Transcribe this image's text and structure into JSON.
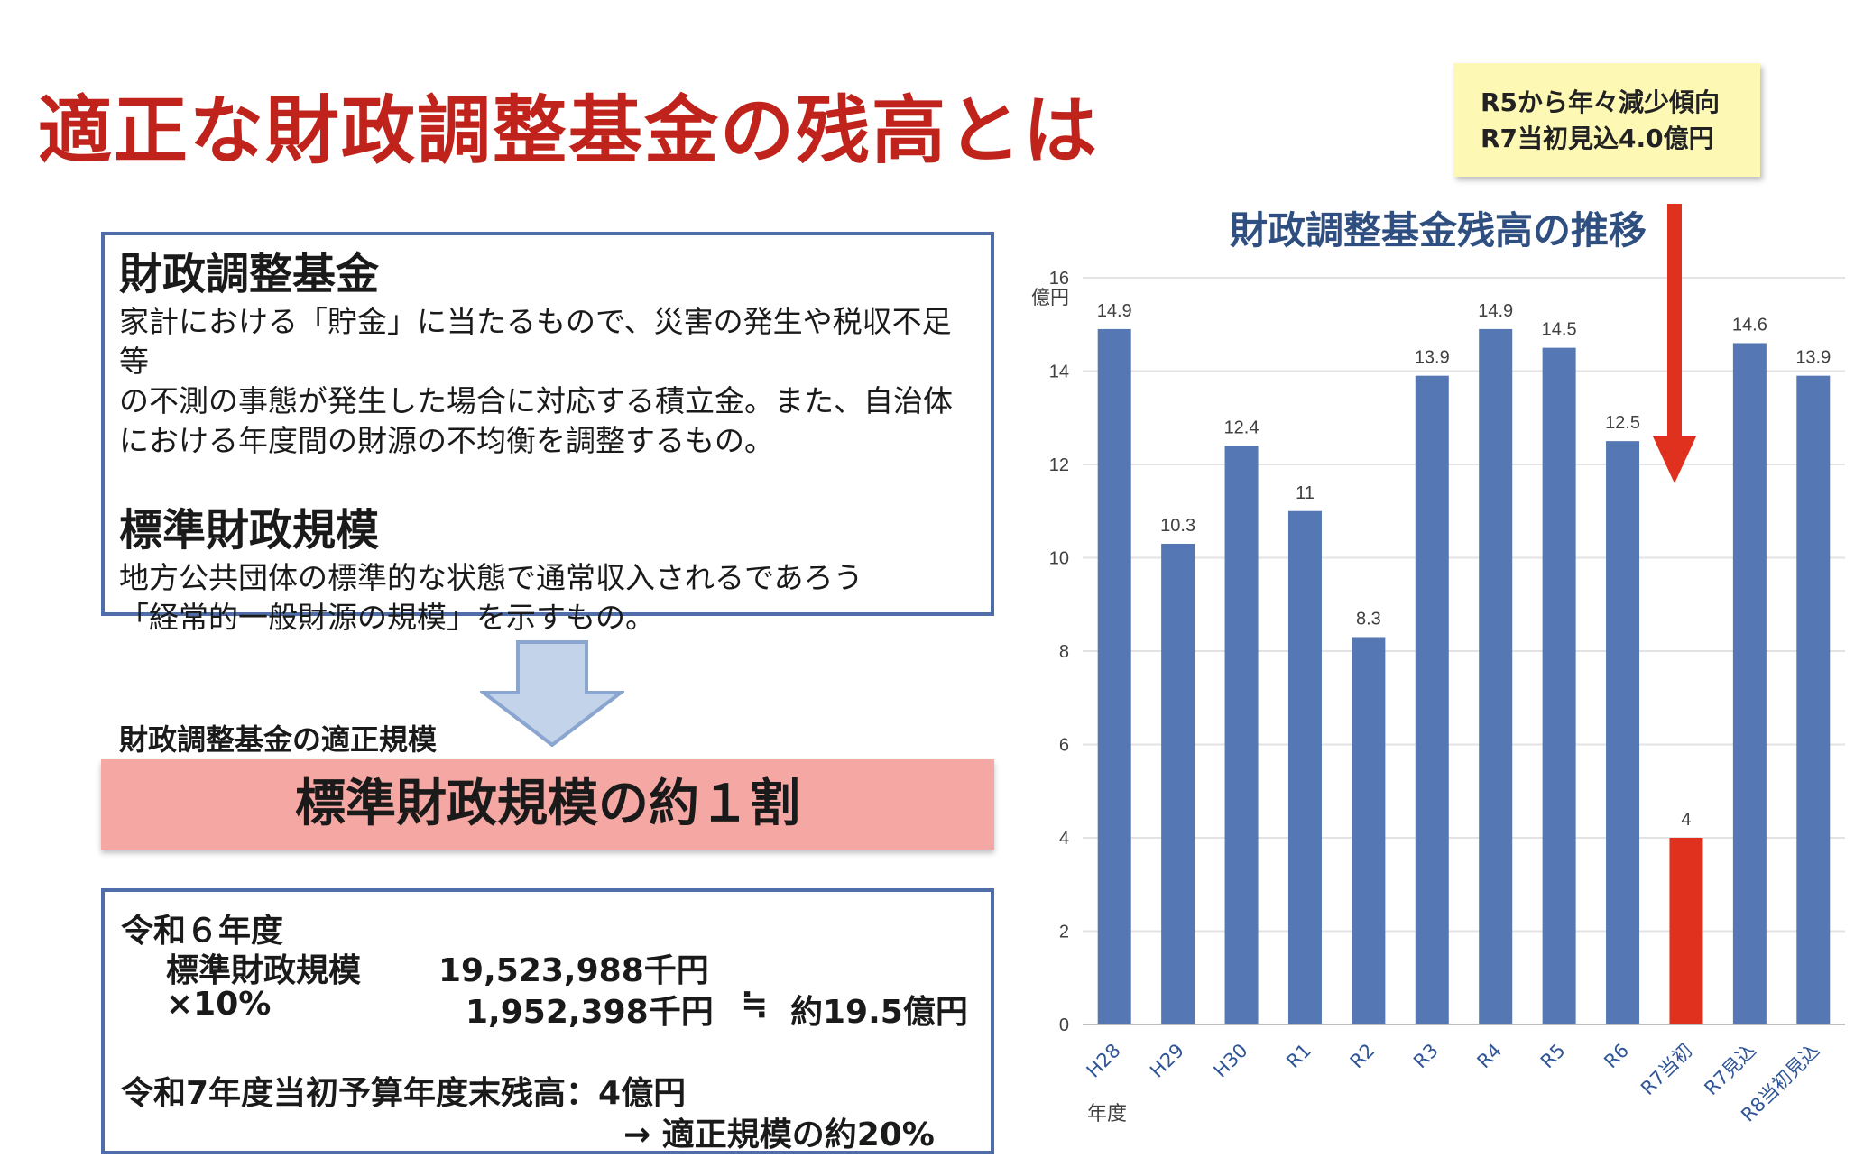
{
  "title": "適正な財政調整基金の残高とは",
  "callout": {
    "line1": "R5から年々減少傾向",
    "line2": "R7当初見込4.0億円"
  },
  "definitions": {
    "heading1": "財政調整基金",
    "text1": [
      "家計における「貯金」に当たるもので、災害の発生や税収不足等",
      "の不測の事態が発生した場合に対応する積立金。また、自治体",
      "における年度間の財源の不均衡を調整するもの。"
    ],
    "heading2": "標準財政規模",
    "text2": [
      "地方公共団体の標準的な状態で通常収入されるであろう",
      "「経常的一般財源の規模」を示すもの。"
    ]
  },
  "appropriate_label": "財政調整基金の適正規模",
  "banner": "標準財政規模の約１割",
  "calc": {
    "year": "令和６年度",
    "label1": "標準財政規模",
    "value1": "19,523,988千円",
    "label2": "×10%",
    "value2": "1,952,398千円",
    "approx": "≒",
    "result": "約19.5億円",
    "line3": "令和7年度当初予算年度末残高：4億円",
    "line4": "→ 適正規模の約20%"
  },
  "colors": {
    "title": "#c0231b",
    "bar": "#5577b3",
    "highlight": "#e0311f",
    "box_border": "#4f6da8",
    "chart_title": "#2f4f80"
  },
  "chart_data": {
    "type": "bar",
    "title": "財政調整基金残高の推移",
    "ylabel": "億円",
    "xlabel": "年度",
    "ylim": [
      0,
      16
    ],
    "yticks": [
      0,
      2,
      4,
      6,
      8,
      10,
      12,
      14,
      16
    ],
    "categories": [
      "H28",
      "H29",
      "H30",
      "R1",
      "R2",
      "R3",
      "R4",
      "R5",
      "R6",
      "R7当初",
      "R7見込",
      "R8当初見込"
    ],
    "values": [
      14.9,
      10.3,
      12.4,
      11,
      8.3,
      13.9,
      14.9,
      14.5,
      12.5,
      4,
      14.6,
      13.9
    ],
    "value_labels": [
      "14.9",
      "10.3",
      "12.4",
      "11",
      "8.3",
      "13.9",
      "14.9",
      "14.5",
      "12.5",
      "4",
      "14.6",
      "13.9"
    ],
    "highlight_index": 9,
    "grid": true
  }
}
